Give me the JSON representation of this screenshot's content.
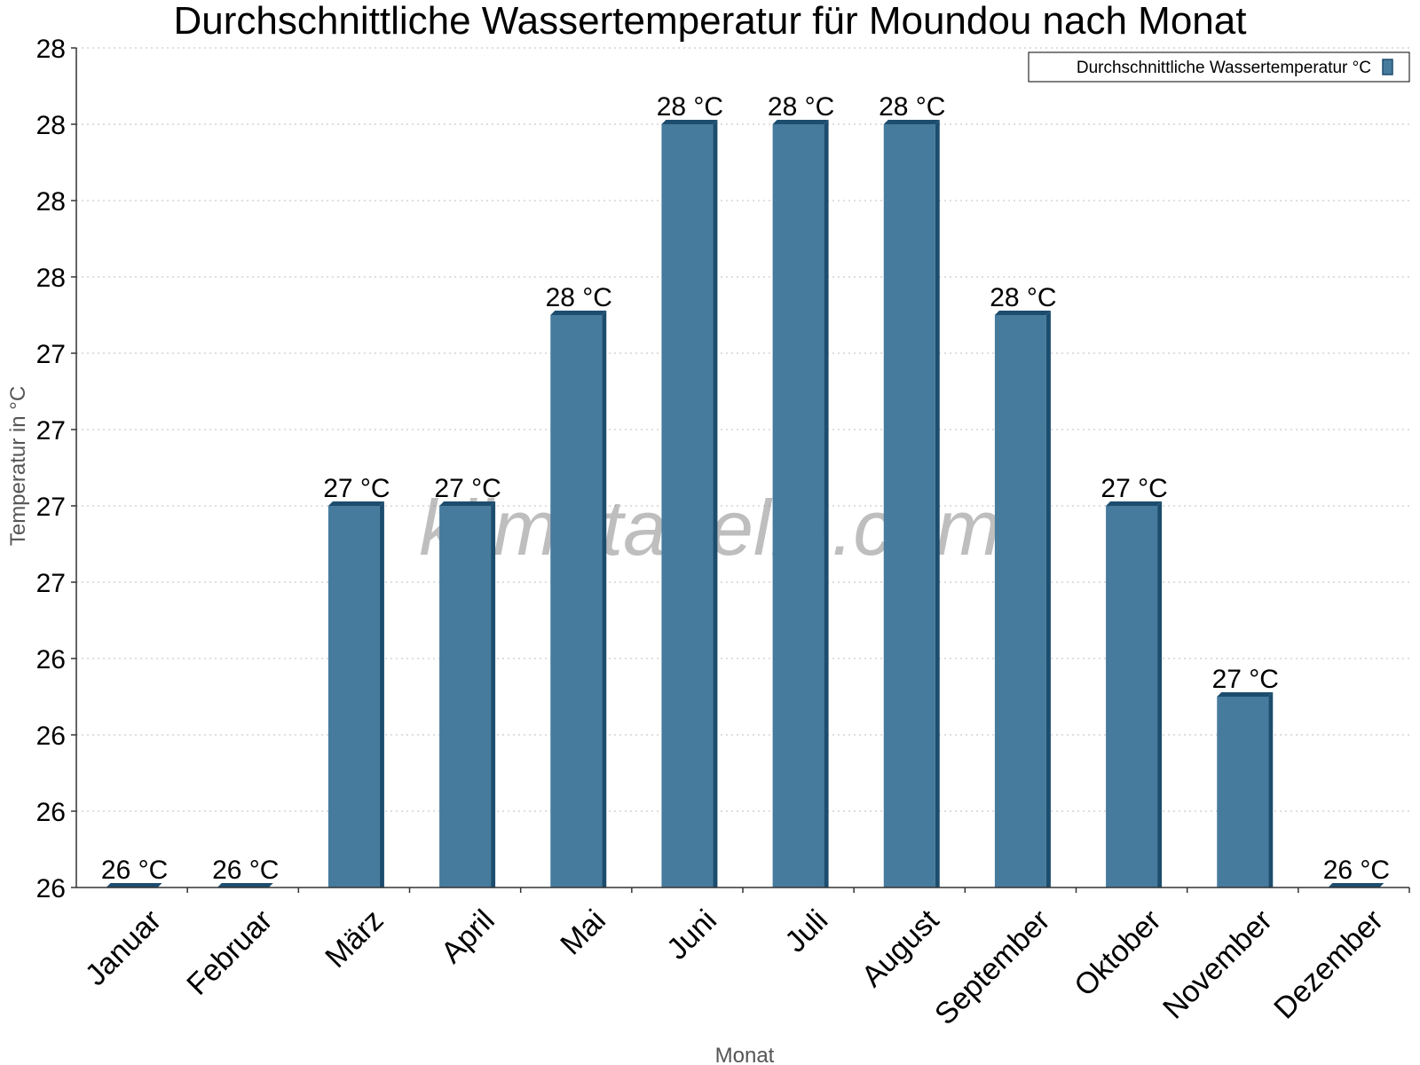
{
  "chart_data": {
    "type": "bar",
    "title": "Durchschnittliche Wassertemperatur für Moundou nach Monat",
    "xlabel": "Monat",
    "ylabel": "Temperatur in °C",
    "categories": [
      "Januar",
      "Februar",
      "März",
      "April",
      "Mai",
      "Juni",
      "Juli",
      "August",
      "September",
      "Oktober",
      "November",
      "Dezember"
    ],
    "series": [
      {
        "name": "Durchschnittliche Wassertemperatur °C",
        "values": [
          26.0,
          26.0,
          27.0,
          27.0,
          27.5,
          28.0,
          28.0,
          28.0,
          27.5,
          27.0,
          26.5,
          26.0
        ],
        "labels": [
          "26 °C",
          "26 °C",
          "27 °C",
          "27 °C",
          "28 °C",
          "28 °C",
          "28 °C",
          "28 °C",
          "28 °C",
          "27 °C",
          "27 °C",
          "26 °C"
        ],
        "color": "#467b9e",
        "side_color": "#1d4d6e"
      }
    ],
    "ylim": [
      26.0,
      28.2
    ],
    "yticks": [
      26.0,
      26.2,
      26.4,
      26.6,
      26.8,
      27.0,
      27.2,
      27.4,
      27.6,
      27.8,
      28.0,
      28.2
    ],
    "ytick_labels": [
      "26",
      "26",
      "26",
      "26",
      "27",
      "27",
      "27",
      "27",
      "28",
      "28",
      "28",
      "28"
    ],
    "grid": true,
    "legend_position": "top-right",
    "watermark": "klimatabelle.com"
  }
}
